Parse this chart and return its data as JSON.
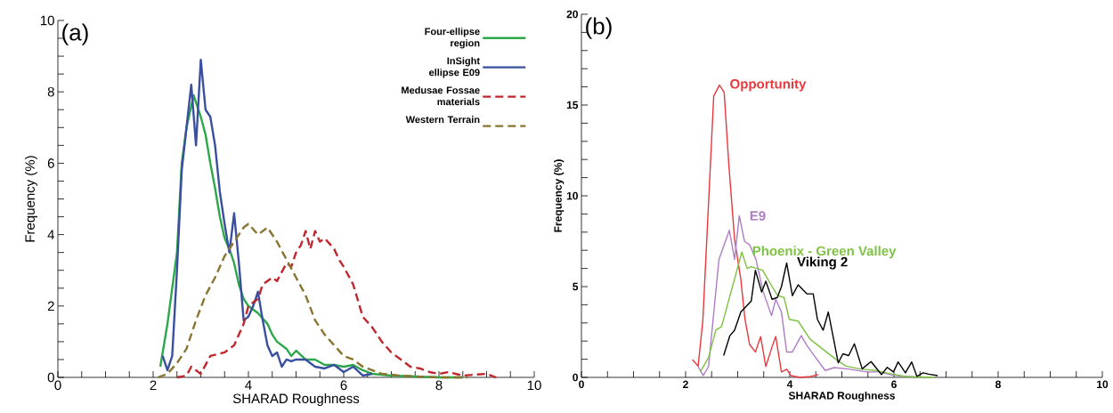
{
  "chart_data": [
    {
      "type": "line",
      "xlabel": "SHARAD Roughness",
      "ylabel": "Frequency (%)",
      "annotations": [
        "(a)"
      ],
      "xlim": [
        0,
        10
      ],
      "ylim": [
        0,
        10
      ],
      "xticks": [
        0,
        {
          "value": 0.5,
          "label": null
        },
        {
          "value": 1,
          "label": null
        },
        {
          "value": 1.5,
          "label": null
        },
        2,
        {
          "value": 2.5,
          "label": null
        },
        {
          "value": 3,
          "label": null
        },
        {
          "value": 3.5,
          "label": null
        },
        4,
        {
          "value": 4.5,
          "label": null
        },
        {
          "value": 5,
          "label": null
        },
        {
          "value": 5.5,
          "label": null
        },
        6,
        {
          "value": 6.5,
          "label": null
        },
        {
          "value": 7,
          "label": null
        },
        {
          "value": 7.5,
          "label": null
        },
        8,
        {
          "value": 8.5,
          "label": null
        },
        {
          "value": 9,
          "label": null
        },
        {
          "value": 9.5,
          "label": null
        },
        10
      ],
      "yticks": [
        0,
        {
          "value": 0.5,
          "label": null
        },
        {
          "value": 1,
          "label": null
        },
        {
          "value": 1.5,
          "label": null
        },
        2,
        {
          "value": 2.5,
          "label": null
        },
        {
          "value": 3,
          "label": null
        },
        {
          "value": 3.5,
          "label": null
        },
        4,
        {
          "value": 4.5,
          "label": null
        },
        {
          "value": 5,
          "label": null
        },
        {
          "value": 5.5,
          "label": null
        },
        6,
        {
          "value": 6.5,
          "label": null
        },
        {
          "value": 7,
          "label": null
        },
        {
          "value": 7.5,
          "label": null
        },
        8,
        {
          "value": 8.5,
          "label": null
        },
        {
          "value": 9,
          "label": null
        },
        {
          "value": 9.5,
          "label": null
        },
        10
      ],
      "legend": "top right",
      "grid": false,
      "series": [
        {
          "name": "Four-ellipse region",
          "color": "#2ca84a",
          "line_style": "solid",
          "x": [
            2.15,
            2.3,
            2.5,
            2.6,
            2.7,
            2.85,
            3.0,
            3.1,
            3.2,
            3.3,
            3.4,
            3.5,
            3.6,
            3.7,
            3.8,
            3.9,
            4.0,
            4.2,
            4.4,
            4.5,
            4.6,
            4.8,
            4.9,
            5.0,
            5.2,
            5.4,
            5.6,
            5.8,
            6.0,
            6.2,
            6.4,
            6.6,
            7.0,
            8.0,
            8.5
          ],
          "values": [
            0.3,
            1.5,
            3.5,
            6,
            7,
            7.9,
            7.3,
            6.8,
            6,
            5.3,
            4.5,
            3.9,
            3.6,
            3.2,
            2.6,
            2.2,
            2.0,
            1.8,
            1.5,
            1.2,
            1.0,
            0.8,
            0.6,
            0.75,
            0.5,
            0.5,
            0.35,
            0.35,
            0.3,
            0.35,
            0.2,
            0.1,
            0.05,
            0,
            0
          ]
        },
        {
          "name": "InSight ellipse E09",
          "color": "#3a4fa0",
          "line_style": "solid",
          "x": [
            2.2,
            2.3,
            2.4,
            2.5,
            2.6,
            2.7,
            2.8,
            2.9,
            3.0,
            3.1,
            3.2,
            3.3,
            3.4,
            3.5,
            3.6,
            3.7,
            3.8,
            3.9,
            4.0,
            4.1,
            4.2,
            4.3,
            4.4,
            4.5,
            4.6,
            4.7,
            4.8,
            4.9,
            5.0,
            5.2,
            5.4,
            5.6,
            5.8,
            6.0,
            6.2,
            6.4,
            6.6
          ],
          "values": [
            0.6,
            0.2,
            0.6,
            3,
            5.8,
            7,
            8.2,
            6.5,
            8.9,
            7.5,
            7.3,
            6.5,
            5.2,
            4.3,
            3.5,
            4.6,
            3.2,
            1.6,
            1.7,
            2.0,
            2.4,
            1.6,
            0.9,
            0.6,
            0.7,
            0.3,
            0.5,
            0.45,
            0.5,
            0.5,
            0.3,
            0.25,
            0.35,
            0.15,
            0.3,
            0.05,
            0.1
          ]
        },
        {
          "name": "Medusae Fossae materials",
          "color": "#c0272d",
          "line_style": "dashed",
          "x": [
            2.5,
            2.7,
            2.8,
            3.0,
            3.2,
            3.5,
            3.7,
            3.9,
            4.0,
            4.2,
            4.3,
            4.5,
            4.6,
            4.8,
            4.9,
            5.0,
            5.1,
            5.2,
            5.3,
            5.4,
            5.5,
            5.6,
            5.8,
            5.9,
            6.0,
            6.2,
            6.4,
            6.6,
            6.8,
            7.0,
            7.2,
            7.4,
            7.6,
            7.8,
            8.0,
            8.2,
            8.5,
            9.0,
            9.2
          ],
          "values": [
            0,
            0.05,
            0.3,
            0.1,
            0.6,
            0.7,
            0.9,
            1.5,
            2.0,
            2.2,
            2.6,
            2.8,
            2.7,
            3.2,
            3.1,
            3.5,
            3.7,
            4.1,
            3.6,
            4.1,
            3.8,
            3.9,
            3.6,
            3.3,
            3.1,
            2.6,
            1.7,
            1.4,
            1.0,
            0.7,
            0.5,
            0.3,
            0.25,
            0.15,
            0.1,
            0.15,
            0.05,
            0.1,
            0
          ]
        },
        {
          "name": "Western Terrain",
          "color": "#8a7432",
          "line_style": "dashed",
          "x": [
            2.1,
            2.3,
            2.5,
            2.7,
            2.9,
            3.1,
            3.3,
            3.5,
            3.7,
            3.9,
            4.0,
            4.2,
            4.4,
            4.6,
            4.8,
            5.0,
            5.2,
            5.4,
            5.6,
            5.8,
            6.0,
            6.2,
            6.4,
            6.6,
            6.8,
            7.2,
            7.6,
            8.0,
            8.6
          ],
          "values": [
            0,
            0.1,
            0.4,
            0.8,
            1.6,
            2.3,
            2.8,
            3.4,
            3.8,
            4.2,
            4.3,
            4.0,
            4.2,
            3.8,
            3.3,
            2.8,
            2.3,
            1.6,
            1.2,
            0.9,
            0.6,
            0.5,
            0.3,
            0.2,
            0.1,
            0.05,
            0.02,
            0,
            0
          ]
        }
      ]
    },
    {
      "type": "line",
      "xlabel": "SHARAD Roughness",
      "ylabel": "Frequency (%)",
      "annotations": [
        "(b)"
      ],
      "xlim": [
        0,
        10
      ],
      "ylim": [
        0,
        20
      ],
      "xticks": [
        0,
        {
          "value": 0.5,
          "label": null
        },
        {
          "value": 1,
          "label": null
        },
        {
          "value": 1.5,
          "label": null
        },
        2,
        {
          "value": 2.5,
          "label": null
        },
        {
          "value": 3,
          "label": null
        },
        {
          "value": 3.5,
          "label": null
        },
        4,
        {
          "value": 4.5,
          "label": null
        },
        {
          "value": 5,
          "label": null
        },
        {
          "value": 5.5,
          "label": null
        },
        6,
        {
          "value": 6.5,
          "label": null
        },
        {
          "value": 7,
          "label": null
        },
        {
          "value": 7.5,
          "label": null
        },
        8,
        {
          "value": 8.5,
          "label": null
        },
        {
          "value": 9,
          "label": null
        },
        {
          "value": 9.5,
          "label": null
        },
        10
      ],
      "yticks": [
        0,
        {
          "value": 1,
          "label": null
        },
        {
          "value": 2,
          "label": null
        },
        {
          "value": 3,
          "label": null
        },
        {
          "value": 4,
          "label": null
        },
        5,
        {
          "value": 6,
          "label": null
        },
        {
          "value": 7,
          "label": null
        },
        {
          "value": 8,
          "label": null
        },
        {
          "value": 9,
          "label": null
        },
        10,
        {
          "value": 11,
          "label": null
        },
        {
          "value": 12,
          "label": null
        },
        {
          "value": 13,
          "label": null
        },
        {
          "value": 14,
          "label": null
        },
        15,
        {
          "value": 16,
          "label": null
        },
        {
          "value": 17,
          "label": null
        },
        {
          "value": 18,
          "label": null
        },
        {
          "value": 19,
          "label": null
        },
        20
      ],
      "legend": false,
      "grid": false,
      "series": [
        {
          "name": "Opportunity",
          "color": "#e8383d",
          "line_style": "solid",
          "x": [
            2.13,
            2.24,
            2.33,
            2.54,
            2.65,
            2.74,
            2.83,
            2.94,
            3.06,
            3.14,
            3.23,
            3.34,
            3.44,
            3.54,
            3.65,
            3.73,
            3.84,
            3.94,
            4.02,
            4.2,
            4.4,
            4.55
          ],
          "values": [
            0.98,
            0.62,
            3.1,
            15.5,
            16.1,
            15.7,
            11.7,
            7.6,
            5.4,
            3.2,
            1.8,
            1.4,
            2.25,
            0.6,
            1.6,
            2.25,
            0.3,
            0.45,
            0.1,
            0,
            0.05,
            0.15
          ]
        },
        {
          "name": "E9",
          "color": "#b07cc6",
          "line_style": "solid",
          "x": [
            2.24,
            2.34,
            2.44,
            2.64,
            2.84,
            2.94,
            3.03,
            3.13,
            3.23,
            3.35,
            3.49,
            3.65,
            3.73,
            3.84,
            3.94,
            4.05,
            4.22,
            4.33,
            4.45,
            4.68,
            4.85,
            5.13,
            5.48,
            5.71,
            5.93,
            6.16,
            6.39
          ],
          "values": [
            0.6,
            0.1,
            0.6,
            6.5,
            8.1,
            6.5,
            8.9,
            7.5,
            7.3,
            6.5,
            4.7,
            3.4,
            4.3,
            3.6,
            1.4,
            1.4,
            2.3,
            1.76,
            1.27,
            0.38,
            0.54,
            0.46,
            0.3,
            0.3,
            0.15,
            0.07,
            0.03
          ]
        },
        {
          "name": "Phoenix - Green Valley",
          "color": "#7dc242",
          "line_style": "solid",
          "x": [
            2.28,
            2.44,
            2.58,
            2.69,
            3.08,
            3.18,
            3.26,
            3.48,
            3.56,
            3.66,
            3.77,
            3.89,
            3.99,
            4.16,
            4.39,
            4.68,
            4.9,
            5.08,
            5.36,
            5.65,
            5.93,
            6.21,
            6.78
          ],
          "values": [
            0.3,
            1.1,
            2.6,
            2.8,
            6.9,
            6.0,
            6.1,
            5.9,
            5.5,
            5.0,
            4.5,
            4.4,
            3.2,
            3.1,
            2.1,
            1.45,
            0.96,
            0.62,
            0.46,
            0.38,
            0.2,
            0.05,
            0
          ]
        },
        {
          "name": "Viking 2",
          "color": "#000000",
          "line_style": "solid",
          "x": [
            2.73,
            2.85,
            2.94,
            3.06,
            3.26,
            3.34,
            3.46,
            3.54,
            3.66,
            3.76,
            3.84,
            3.94,
            4.05,
            4.16,
            4.33,
            4.45,
            4.53,
            4.64,
            4.74,
            4.93,
            5.02,
            5.13,
            5.24,
            5.39,
            5.56,
            5.65,
            5.76,
            5.87,
            5.99,
            6.08,
            6.22,
            6.34,
            6.44,
            6.56,
            6.67,
            6.84
          ],
          "values": [
            1.2,
            2.3,
            2.6,
            3.6,
            4.2,
            5.9,
            4.7,
            5.3,
            4.3,
            4.4,
            5.0,
            6.3,
            4.5,
            5.1,
            4.6,
            4.6,
            3.2,
            2.6,
            3.6,
            0.8,
            1.3,
            1.2,
            1.85,
            0.47,
            0.87,
            0.55,
            0.15,
            0.55,
            0.3,
            0.85,
            0.25,
            0.85,
            0.06,
            0.25,
            0.18,
            0.1
          ]
        }
      ]
    }
  ]
}
